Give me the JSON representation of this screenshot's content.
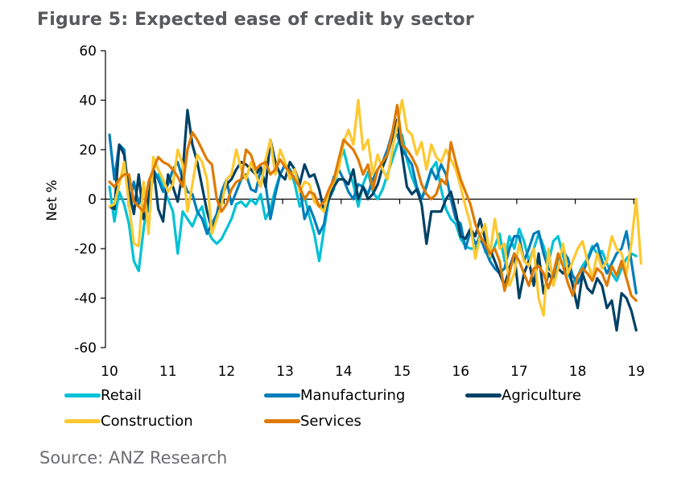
{
  "figure": {
    "title": "Figure 5: Expected ease of credit by sector",
    "source": "Source: ANZ Research"
  },
  "chart_data": {
    "type": "line",
    "title": "Figure 5: Expected ease of credit by sector",
    "xlabel": "",
    "ylabel": "Net %",
    "ylim": [
      -60,
      60
    ],
    "yticks": [
      60,
      40,
      20,
      0,
      -20,
      -40,
      -60
    ],
    "xlim": [
      2010,
      2019
    ],
    "xticks": [
      "10",
      "11",
      "12",
      "13",
      "14",
      "15",
      "16",
      "17",
      "18",
      "19"
    ],
    "x_start": 2010.0,
    "x_step_years": 0.08333,
    "grid": false,
    "legend_position": "bottom",
    "series": [
      {
        "name": "Retail",
        "color": "#00c1d5",
        "values": [
          5,
          -9,
          3,
          -2,
          -10,
          -25,
          -29,
          -12,
          2,
          8,
          10,
          5,
          0,
          -5,
          -22,
          -5,
          -8,
          -11,
          -6,
          -3,
          -12,
          -16,
          -18,
          -16,
          -12,
          -8,
          -2,
          -1,
          -3,
          0,
          -2,
          2,
          -8,
          -4,
          4,
          10,
          14,
          12,
          6,
          -3,
          1,
          -7,
          -14,
          -25,
          -12,
          0,
          4,
          14,
          20,
          12,
          6,
          -3,
          6,
          11,
          3,
          0,
          4,
          10,
          16,
          22,
          26,
          16,
          9,
          4,
          0,
          6,
          12,
          15,
          4,
          -4,
          -8,
          -10,
          -16,
          -19,
          -20,
          -20,
          -14,
          -21,
          -24,
          -19,
          -14,
          -25,
          -15,
          -20,
          -12,
          -17,
          -25,
          -20,
          -14,
          -19,
          -26,
          -17,
          -15,
          -23,
          -30,
          -34,
          -31,
          -27,
          -24,
          -19,
          -22,
          -21,
          -26,
          -30,
          -33,
          -28,
          -24,
          -22,
          -23
        ]
      },
      {
        "name": "Manufacturing",
        "color": "#007dba",
        "values": [
          26,
          8,
          22,
          20,
          -3,
          7,
          -2,
          5,
          -5,
          12,
          8,
          3,
          6,
          12,
          15,
          8,
          3,
          2,
          -5,
          -8,
          -14,
          -10,
          -6,
          3,
          8,
          -2,
          3,
          8,
          10,
          4,
          3,
          12,
          6,
          -8,
          2,
          10,
          14,
          12,
          8,
          5,
          -8,
          -3,
          -8,
          -14,
          -10,
          2,
          9,
          12,
          8,
          3,
          0,
          6,
          5,
          2,
          8,
          12,
          15,
          20,
          27,
          26,
          20,
          17,
          14,
          5,
          0,
          5,
          12,
          8,
          14,
          10,
          0,
          -8,
          -10,
          -20,
          -13,
          -18,
          -16,
          -20,
          -25,
          -28,
          -30,
          -28,
          -20,
          -15,
          -15,
          -25,
          -20,
          -14,
          -13,
          -22,
          -28,
          -30,
          -25,
          -21,
          -24,
          -31,
          -34,
          -30,
          -25,
          -20,
          -18,
          -25,
          -30,
          -26,
          -22,
          -20,
          -13,
          -25,
          -38
        ]
      },
      {
        "name": "Agriculture",
        "color": "#004165",
        "values": [
          -3,
          -4,
          22,
          18,
          3,
          -6,
          10,
          -8,
          0,
          13,
          -4,
          -9,
          10,
          5,
          -1,
          11,
          36,
          22,
          15,
          5,
          -5,
          -12,
          -8,
          0,
          6,
          8,
          12,
          15,
          14,
          12,
          10,
          13,
          5,
          24,
          15,
          10,
          8,
          15,
          12,
          6,
          14,
          9,
          10,
          4,
          -5,
          0,
          5,
          8,
          8,
          6,
          12,
          0,
          5,
          0,
          2,
          6,
          13,
          18,
          25,
          32,
          18,
          5,
          2,
          4,
          -2,
          -18,
          -5,
          -5,
          -5,
          0,
          3,
          -5,
          -15,
          -16,
          -12,
          -15,
          -8,
          -16,
          -20,
          -25,
          -30,
          -35,
          -28,
          -22,
          -40,
          -30,
          -25,
          -35,
          -22,
          -38,
          -30,
          -33,
          -28,
          -30,
          -27,
          -35,
          -44,
          -30,
          -36,
          -38,
          -32,
          -35,
          -44,
          -41,
          -53,
          -38,
          -40,
          -45,
          -53
        ]
      },
      {
        "name": "Construction",
        "color": "#fdc82f",
        "values": [
          -3,
          -2,
          6,
          15,
          -2,
          -18,
          -19,
          7,
          -14,
          17,
          12,
          8,
          3,
          6,
          20,
          14,
          -5,
          6,
          18,
          15,
          8,
          -14,
          -8,
          -2,
          8,
          10,
          20,
          12,
          8,
          15,
          10,
          5,
          16,
          24,
          10,
          20,
          15,
          8,
          12,
          3,
          7,
          6,
          -1,
          -3,
          -5,
          3,
          7,
          12,
          23,
          28,
          22,
          40,
          20,
          24,
          10,
          18,
          12,
          8,
          20,
          30,
          40,
          28,
          26,
          18,
          23,
          12,
          22,
          17,
          15,
          20,
          16,
          12,
          5,
          -3,
          -10,
          -24,
          -15,
          -10,
          -23,
          -8,
          -20,
          -18,
          -35,
          -30,
          -18,
          -25,
          -27,
          -20,
          -40,
          -47,
          -20,
          -35,
          -28,
          -18,
          -30,
          -25,
          -20,
          -17,
          -25,
          -32,
          -22,
          -28,
          -25,
          -15,
          -20,
          -22,
          -30,
          -18,
          0,
          -26
        ]
      },
      {
        "name": "Services",
        "color": "#df7a00",
        "values": [
          7,
          5,
          8,
          10,
          10,
          -1,
          -3,
          -5,
          7,
          12,
          17,
          15,
          14,
          12,
          9,
          5,
          20,
          27,
          24,
          20,
          16,
          14,
          0,
          -5,
          -2,
          4,
          7,
          8,
          20,
          18,
          12,
          14,
          15,
          10,
          12,
          16,
          13,
          11,
          8,
          5,
          0,
          3,
          2,
          -3,
          -1,
          4,
          8,
          16,
          24,
          22,
          20,
          16,
          10,
          14,
          4,
          12,
          15,
          18,
          27,
          38,
          22,
          20,
          17,
          13,
          6,
          2,
          0,
          2,
          8,
          6,
          23,
          15,
          8,
          3,
          -2,
          -10,
          -15,
          -18,
          -22,
          -20,
          -25,
          -37,
          -30,
          -22,
          -25,
          -30,
          -35,
          -28,
          -27,
          -30,
          -36,
          -30,
          -22,
          -27,
          -34,
          -39,
          -31,
          -28,
          -30,
          -33,
          -28,
          -30,
          -35,
          -27,
          -31,
          -25,
          -32,
          -39,
          -41
        ]
      }
    ]
  }
}
